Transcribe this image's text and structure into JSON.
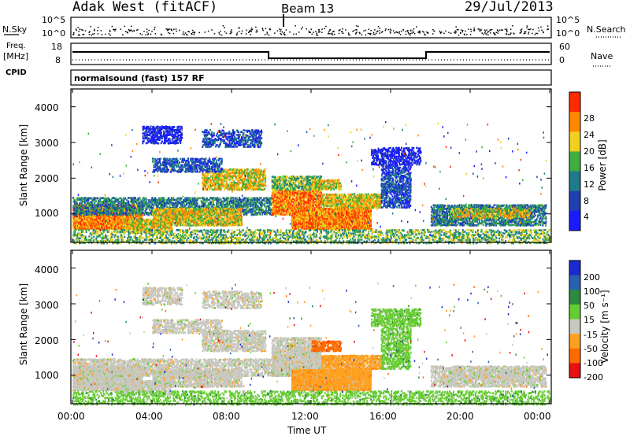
{
  "header": {
    "station": "Adak West (fitACF)",
    "beam": "Beam 13",
    "date": "29/Jul/2013"
  },
  "top_panels": {
    "nsky_label": "N.Sky",
    "nsky_ticks": [
      "10^5",
      "10^0"
    ],
    "nsearch_label": "N.Search",
    "nsearch_ticks": [
      "10^5",
      "10^0"
    ],
    "freq_label_line1": "Freq.",
    "freq_label_line2": "[MHz]",
    "freq_ticks": [
      "18",
      "8"
    ],
    "nave_label": "Nave",
    "nave_ticks": [
      "60",
      "0"
    ],
    "cpid_label": "CPID",
    "cpid_text": "normalsound (fast) 157 RF"
  },
  "chart_data": [
    {
      "type": "heatmap",
      "name": "power",
      "ylabel": "Slant Range [km]",
      "yticks": [
        "1000",
        "2000",
        "3000",
        "4000"
      ],
      "ylim": [
        200,
        4500
      ],
      "xlim": [
        0,
        24
      ],
      "colorbar_label": "Power [dB]",
      "colorbar_ticks": [
        "4",
        "8",
        "12",
        "16",
        "20",
        "24",
        "28"
      ],
      "colorbar_colors": [
        "#1a1aff",
        "#2040b0",
        "#1f7a8c",
        "#3fae3f",
        "#f0d020",
        "#ff8800",
        "#ff2a00"
      ]
    },
    {
      "type": "heatmap",
      "name": "velocity",
      "ylabel": "Slant Range [km]",
      "yticks": [
        "1000",
        "2000",
        "3000",
        "4000"
      ],
      "ylim": [
        200,
        4500
      ],
      "xlim": [
        0,
        24
      ],
      "xlabel": "Time UT",
      "xticks": [
        "00:00",
        "04:00",
        "08:00",
        "12:00",
        "16:00",
        "20:00",
        "00:00"
      ],
      "colorbar_label": "Velocity [m s⁻¹]",
      "colorbar_ticks": [
        "200",
        "100",
        "50",
        "15",
        "-15",
        "-50",
        "-100",
        "-200"
      ],
      "colorbar_colors": [
        "#1a2ad0",
        "#2a60b0",
        "#2e8a3e",
        "#66cc33",
        "#c8c8c0",
        "#ffa020",
        "#ff6a00",
        "#e81010"
      ]
    }
  ],
  "colors": {
    "scatter_gray": "#c8c8c0",
    "axis": "#000000"
  }
}
